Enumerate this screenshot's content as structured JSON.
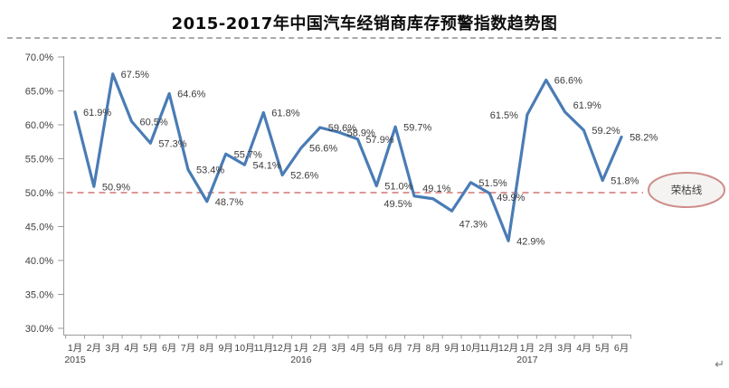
{
  "title": "2015-2017年中国汽车经销商库存预警指数趋势图",
  "return_mark": "↵",
  "chart_data": {
    "type": "line",
    "title": "2015-2017年中国汽车经销商库存预警指数趋势图",
    "xlabel": "",
    "ylabel": "",
    "ylim": [
      30,
      70
    ],
    "grid": false,
    "legend": "none",
    "line_color": "#4A7CB5",
    "reference_color": "#C85F5A",
    "ytick_values": [
      70,
      65,
      60,
      55,
      50,
      45,
      40,
      35,
      30
    ],
    "ytick_labels": [
      "70.0%",
      "65.0%",
      "60.0%",
      "55.0%",
      "50.0%",
      "45.0%",
      "40.0%",
      "35.0%",
      "30.0%"
    ],
    "month_labels": [
      "1月",
      "2月",
      "3月",
      "4月",
      "5月",
      "6月",
      "7月",
      "8月",
      "9月",
      "10月",
      "11月",
      "12月",
      "1月",
      "2月",
      "3月",
      "4月",
      "5月",
      "6月",
      "7月",
      "8月",
      "9月",
      "10月",
      "11月",
      "12月",
      "1月",
      "2月",
      "3月",
      "4月",
      "5月",
      "6月"
    ],
    "year_markers": [
      {
        "at": 0,
        "label": "2015"
      },
      {
        "at": 12,
        "label": "2016"
      },
      {
        "at": 24,
        "label": "2017"
      }
    ],
    "values": [
      61.9,
      50.9,
      67.5,
      60.5,
      57.3,
      64.6,
      53.4,
      48.7,
      55.7,
      54.1,
      61.8,
      52.6,
      56.6,
      59.6,
      58.9,
      57.9,
      51.0,
      59.7,
      49.5,
      49.1,
      47.3,
      51.5,
      49.9,
      42.9,
      61.5,
      66.6,
      61.9,
      59.2,
      51.8,
      58.2
    ],
    "point_labels": [
      "61.9%",
      "50.9%",
      "67.5%",
      "60.5%",
      "57.3%",
      "64.6%",
      "53.4%",
      "48.7%",
      "55.7%",
      "54.1%",
      "61.8%",
      "52.6%",
      "56.6%",
      "59.6%",
      "58.9%",
      "57.9%",
      "51.0%",
      "59.7%",
      "49.5%",
      "49.1%",
      "47.3%",
      "51.5%",
      "49.9%",
      "42.9%",
      "61.5%",
      "66.6%",
      "61.9%",
      "59.2%",
      "51.8%",
      "58.2%"
    ],
    "label_positions": [
      "right",
      "right",
      "right",
      "right",
      "right",
      "right",
      "right",
      "right",
      "right",
      "right",
      "right",
      "right",
      "right",
      "right",
      "right",
      "right",
      "right",
      "right",
      "below-left",
      "above",
      "below-right",
      "right",
      "right-below",
      "right",
      "left",
      "right",
      "above-right",
      "right",
      "right",
      "right"
    ],
    "reference_line": {
      "value": 50.0,
      "label": "荣枯线"
    }
  }
}
